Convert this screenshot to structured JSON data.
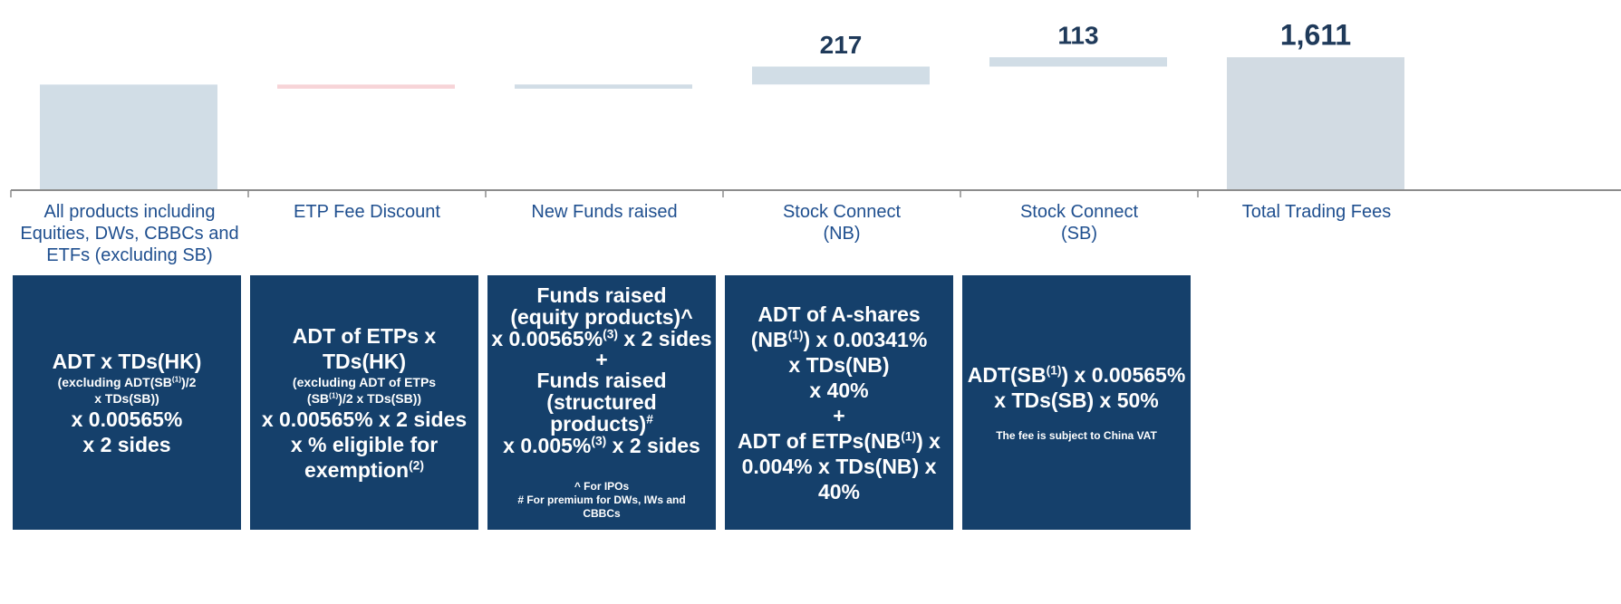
{
  "chart_data": {
    "type": "waterfall",
    "categories": [
      "All products including Equities, DWs, CBBCs and ETFs (excluding SB)",
      "ETP Fee Discount",
      "New Funds raised",
      "Stock Connect\n(NB)",
      "Stock Connect\n(SB)",
      "Total Trading Fees"
    ],
    "values": [
      1280,
      -50,
      51,
      217,
      113,
      1611
    ],
    "value_labels": [
      null,
      null,
      null,
      "217",
      "113",
      "1,611"
    ],
    "is_total": [
      false,
      false,
      false,
      false,
      false,
      true
    ],
    "colors": [
      "#d1dde6",
      "#f7d4d7",
      "#d1dde6",
      "#d1dde6",
      "#d1dde6",
      "#d2dbe3"
    ],
    "ylim": [
      0,
      1800
    ]
  },
  "formulas": [
    [
      "ADT x TDs(HK)",
      "(excluding ADT(SB",
      "(1)",
      ")/2",
      "x TDs(SB))",
      "x 0.00565%",
      "x 2 sides"
    ],
    [
      "ADT of ETPs x",
      "TDs(HK)",
      "(excluding ADT of ETPs",
      "(SB",
      "(1)",
      ")/2 x TDs(SB))",
      "x 0.00565% x 2 sides",
      "x % eligible for",
      "exemption",
      "(2)"
    ],
    [
      "Funds raised",
      "(equity products)^",
      "x 0.00565%",
      "(3)",
      " x 2 sides",
      "+",
      "Funds raised",
      "(structured",
      "products)",
      "#",
      "x 0.005%",
      "(3)",
      " x 2 sides",
      "^ For IPOs",
      "# For premium for DWs, IWs and",
      "CBBCs"
    ],
    [
      "ADT of A-shares",
      "(NB",
      "(1)",
      ") x 0.00341%",
      "x TDs(NB)",
      "x 40%",
      "+",
      "ADT of ETPs(NB",
      "(1)",
      ") x",
      "0.004% x TDs(NB) x",
      "40%"
    ],
    [
      "ADT(SB",
      "(1)",
      ") x 0.00565%",
      "x TDs(SB) x 50%",
      "The fee is subject to China VAT"
    ]
  ]
}
